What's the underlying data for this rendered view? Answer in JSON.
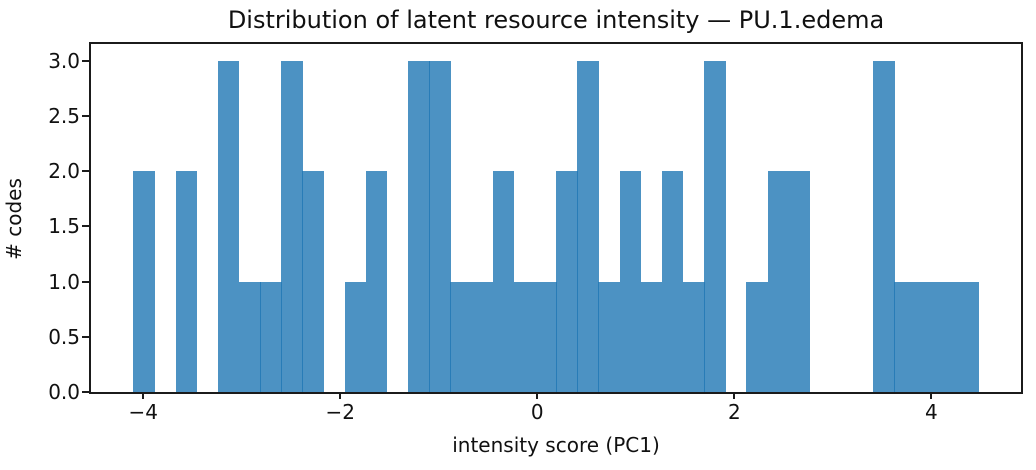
{
  "chart_data": {
    "type": "bar",
    "subtype": "histogram",
    "title": "Distribution of latent resource intensity — PU.1.edema",
    "xlabel": "intensity score (PC1)",
    "ylabel": "# codes",
    "bin_start": -4.1,
    "bin_width": 0.2146,
    "counts": [
      2,
      0,
      2,
      0,
      3,
      1,
      1,
      3,
      2,
      0,
      1,
      2,
      0,
      3,
      3,
      1,
      1,
      2,
      1,
      1,
      2,
      3,
      1,
      2,
      1,
      2,
      1,
      3,
      0,
      1,
      2,
      2,
      0,
      0,
      0,
      3,
      1,
      1,
      1,
      1
    ],
    "total_codes": 56,
    "xlim": [
      -4.53,
      4.91
    ],
    "ylim": [
      0,
      3.15
    ],
    "xticks": [
      -4,
      -2,
      0,
      2,
      4
    ],
    "xtick_labels": [
      "−4",
      "−2",
      "0",
      "2",
      "4"
    ],
    "yticks": [
      0,
      0.5,
      1,
      1.5,
      2,
      2.5,
      3
    ],
    "ytick_labels": [
      "0.0",
      "0.5",
      "1.0",
      "1.5",
      "2.0",
      "2.5",
      "3.0"
    ],
    "grid": false,
    "legend": null,
    "bar_color": "rgba(31,119,180,0.8)",
    "axis_color": "#1b1b1b",
    "background": "#ffffff"
  }
}
